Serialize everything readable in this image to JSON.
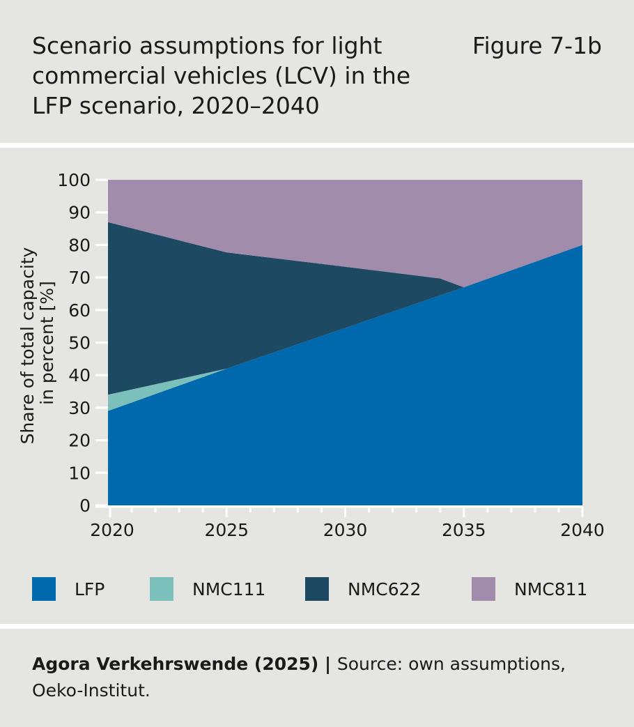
{
  "header": {
    "title": "Scenario assumptions for light commercial vehicles (LCV) in the LFP scenario, 2020–2040",
    "figure_label": "Figure 7-1b"
  },
  "footer": {
    "source_bold": "Agora Verkehrswende (2025)",
    "separator": " | ",
    "source_text": "Source: own assumptions, Oeko-Institut."
  },
  "chart_data": {
    "type": "area",
    "stacked": true,
    "title": "",
    "xlabel": "",
    "ylabel": "Share of total capacity in percent [%]",
    "ylabel_lines": [
      "Share of total capacity",
      "in percent [%]"
    ],
    "xlim": [
      2020,
      2040
    ],
    "ylim": [
      0,
      100
    ],
    "xticks": [
      2020,
      2025,
      2030,
      2035,
      2040
    ],
    "yticks": [
      0,
      10,
      20,
      30,
      40,
      50,
      60,
      70,
      80,
      90,
      100
    ],
    "grid": false,
    "legend_placement": "bottom",
    "x": [
      2020,
      2025,
      2030,
      2034,
      2035,
      2040
    ],
    "series": [
      {
        "name": "LFP",
        "color": "#0069ad",
        "values": [
          29,
          42,
          54.5,
          64.5,
          67,
          80
        ]
      },
      {
        "name": "NMC111",
        "color": "#7cc0bb",
        "values": [
          5,
          0,
          0,
          0,
          0,
          0
        ]
      },
      {
        "name": "NMC622",
        "color": "#1e4962",
        "values": [
          53,
          35.7,
          18.8,
          5.2,
          0,
          0
        ]
      },
      {
        "name": "NMC811",
        "color": "#a18cab",
        "values": [
          13,
          22.3,
          26.7,
          30.3,
          33,
          20
        ]
      }
    ]
  }
}
